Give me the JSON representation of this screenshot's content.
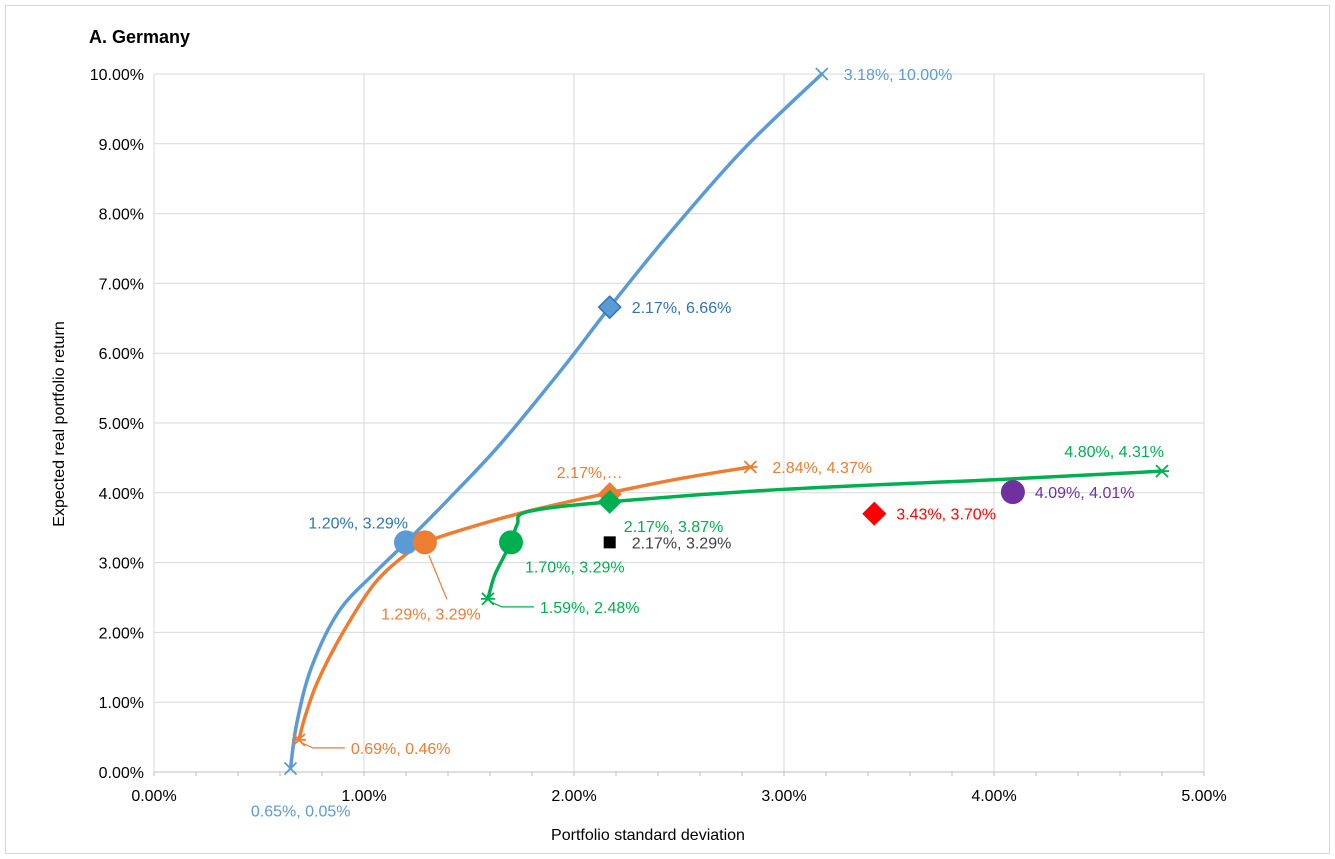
{
  "chart_data": {
    "type": "line",
    "title": "A. Germany",
    "xlabel": "Portfolio standard deviation",
    "ylabel": "Expected real portfolio return",
    "xlim": [
      0,
      5
    ],
    "ylim": [
      0,
      10
    ],
    "x_ticks": [
      0,
      1,
      2,
      3,
      4,
      5
    ],
    "y_ticks": [
      0,
      1,
      2,
      3,
      4,
      5,
      6,
      7,
      8,
      9,
      10
    ],
    "x_tick_labels": [
      "0.00%",
      "1.00%",
      "2.00%",
      "3.00%",
      "4.00%",
      "5.00%"
    ],
    "y_tick_labels": [
      "0.00%",
      "1.00%",
      "2.00%",
      "3.00%",
      "4.00%",
      "5.00%",
      "6.00%",
      "7.00%",
      "8.00%",
      "9.00%",
      "10.00%"
    ],
    "grid": true,
    "legend": "none",
    "colors": {
      "blue": "#5b9bd5",
      "blue_dark": "#2e75b6",
      "orange": "#ed7d31",
      "green": "#00b050",
      "black": "#000000",
      "red": "#ff0000",
      "purple": "#7030a0",
      "gray": "#404040",
      "grid": "#d9d9d9"
    },
    "series": [
      {
        "color": "#5b9bd5",
        "x": [
          0.65,
          0.68,
          0.75,
          0.88,
          1.05,
          1.2,
          1.4,
          1.65,
          1.95,
          2.17,
          2.45,
          2.8,
          3.18
        ],
        "y": [
          0.05,
          0.7,
          1.5,
          2.3,
          2.85,
          3.29,
          3.9,
          4.7,
          5.8,
          6.66,
          7.7,
          8.9,
          10.0
        ]
      },
      {
        "color": "#ed7d31",
        "x": [
          0.69,
          0.72,
          0.78,
          0.9,
          1.05,
          1.2,
          1.29,
          1.5,
          1.8,
          2.17,
          2.5,
          2.84
        ],
        "y": [
          0.46,
          0.8,
          1.3,
          2.0,
          2.7,
          3.12,
          3.29,
          3.5,
          3.75,
          4.0,
          4.2,
          4.37
        ]
      },
      {
        "color": "#00b050",
        "x": [
          1.59,
          1.62,
          1.66,
          1.7,
          1.73,
          1.78,
          2.17,
          3.0,
          4.09,
          4.8
        ],
        "y": [
          2.48,
          2.8,
          3.05,
          3.29,
          3.55,
          3.73,
          3.87,
          4.05,
          4.2,
          4.31
        ]
      }
    ],
    "markers": [
      {
        "shape": "x",
        "x": 3.18,
        "y": 10.0,
        "color": "#5b9bd5"
      },
      {
        "shape": "x",
        "x": 0.65,
        "y": 0.05,
        "color": "#5b9bd5"
      },
      {
        "shape": "diamond",
        "x": 2.17,
        "y": 6.66,
        "color": "#5b9bd5"
      },
      {
        "shape": "circle",
        "x": 1.2,
        "y": 3.29,
        "color": "#5b9bd5"
      },
      {
        "shape": "star",
        "x": 2.84,
        "y": 4.37,
        "color": "#ed7d31"
      },
      {
        "shape": "star",
        "x": 0.69,
        "y": 0.46,
        "color": "#ed7d31"
      },
      {
        "shape": "diamond",
        "x": 2.17,
        "y": 3.98,
        "color": "#ed7d31"
      },
      {
        "shape": "circle",
        "x": 1.29,
        "y": 3.29,
        "color": "#ed7d31"
      },
      {
        "shape": "star",
        "x": 4.8,
        "y": 4.31,
        "color": "#00b050"
      },
      {
        "shape": "star",
        "x": 1.59,
        "y": 2.48,
        "color": "#00b050"
      },
      {
        "shape": "diamond",
        "x": 2.17,
        "y": 3.87,
        "color": "#00b050"
      },
      {
        "shape": "circle",
        "x": 1.7,
        "y": 3.29,
        "color": "#00b050"
      },
      {
        "shape": "square",
        "x": 2.17,
        "y": 3.29,
        "color": "#000000"
      },
      {
        "shape": "diamond",
        "x": 3.43,
        "y": 3.7,
        "color": "#ff0000"
      },
      {
        "shape": "circle",
        "x": 4.09,
        "y": 4.01,
        "color": "#7030a0"
      }
    ],
    "annotations": [
      {
        "text": "3.18%, 10.00%",
        "x": 3.18,
        "y": 10.0,
        "color": "#5b9bd5",
        "pos": "right"
      },
      {
        "text": "2.17%, 6.66%",
        "x": 2.17,
        "y": 6.66,
        "color": "#2e75b6",
        "pos": "right"
      },
      {
        "text": "1.20%, 3.29%",
        "x": 1.2,
        "y": 3.29,
        "color": "#2e75b6",
        "pos": "above-left"
      },
      {
        "text": "0.65%, 0.05%",
        "x": 0.65,
        "y": 0.05,
        "color": "#5b9bd5",
        "pos": "below"
      },
      {
        "text": "2.17%,…",
        "x": 2.17,
        "y": 3.98,
        "color": "#ed7d31",
        "pos": "above"
      },
      {
        "text": "2.84%, 4.37%",
        "x": 2.84,
        "y": 4.37,
        "color": "#ed7d31",
        "pos": "right"
      },
      {
        "text": "1.29%, 3.29%",
        "x": 1.29,
        "y": 3.29,
        "color": "#ed7d31",
        "pos": "callout-below"
      },
      {
        "text": "0.69%, 0.46%",
        "x": 0.69,
        "y": 0.46,
        "color": "#ed7d31",
        "pos": "callout-right"
      },
      {
        "text": "4.80%, 4.31%",
        "x": 4.8,
        "y": 4.31,
        "color": "#00b050",
        "pos": "above-left"
      },
      {
        "text": "2.17%, 3.87%",
        "x": 2.17,
        "y": 3.87,
        "color": "#00b050",
        "pos": "below-right"
      },
      {
        "text": "1.70%, 3.29%",
        "x": 1.7,
        "y": 3.29,
        "color": "#00b050",
        "pos": "below-right"
      },
      {
        "text": "1.59%, 2.48%",
        "x": 1.59,
        "y": 2.48,
        "color": "#00b050",
        "pos": "callout-right"
      },
      {
        "text": "2.17%, 3.29%",
        "x": 2.17,
        "y": 3.29,
        "color": "#404040",
        "pos": "right"
      },
      {
        "text": "3.43%, 3.70%",
        "x": 3.43,
        "y": 3.7,
        "color": "#ff0000",
        "pos": "right"
      },
      {
        "text": "4.09%, 4.01%",
        "x": 4.09,
        "y": 4.01,
        "color": "#7030a0",
        "pos": "right"
      }
    ]
  }
}
